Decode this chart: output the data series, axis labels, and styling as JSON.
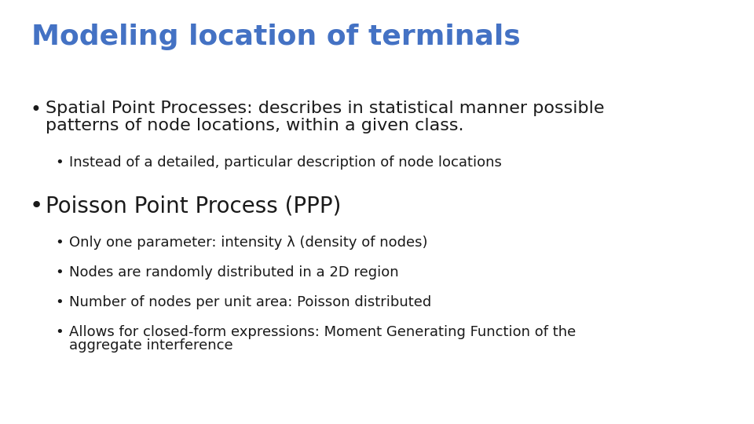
{
  "title": "Modeling location of terminals",
  "title_color": "#4472C4",
  "title_fontsize": 26,
  "background_color": "#FFFFFF",
  "text_color": "#1A1A1A",
  "bullet1_main_line1": "Spatial Point Processes: describes in statistical manner possible",
  "bullet1_main_line2": "patterns of node locations, within a given class.",
  "bullet1_sub": "Instead of a detailed, particular description of node locations",
  "bullet2_main": "Poisson Point Process (PPP)",
  "bullet2_fontsize": 20,
  "bullet2_subs": [
    "Only one parameter: intensity λ (density of nodes)",
    "Nodes are randomly distributed in a 2D region",
    "Number of nodes per unit area: Poisson distributed",
    "Allows for closed-form expressions: Moment Generating Function of the"
  ],
  "bullet2_sub4_line2": "aggregate interference",
  "main_fontsize": 16,
  "sub_fontsize": 13
}
